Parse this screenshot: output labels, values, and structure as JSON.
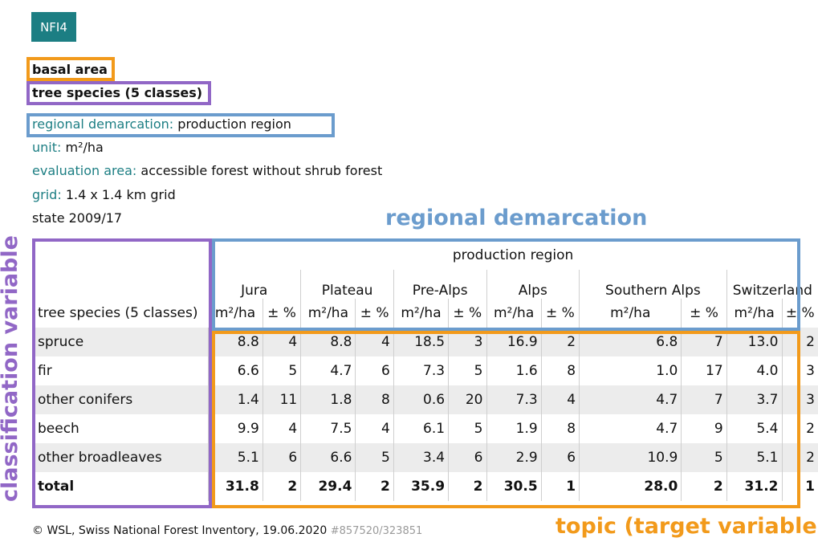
{
  "badge": "NFI4",
  "topic": "basal area",
  "classification": "tree species (5 classes)",
  "regional_label": "regional demarcation:",
  "regional_value": "production region",
  "unit_label": "unit:",
  "unit_value": "m²/ha",
  "eval_label": "evaluation area:",
  "eval_value": "accessible forest without shrub forest",
  "grid_label": "grid:",
  "grid_value": "1.4 x 1.4 km grid",
  "state": "state 2009/17",
  "annotations": {
    "regional": "regional demarcation",
    "classification": "classification variable",
    "topic": "topic (target variable)"
  },
  "table": {
    "group_header": "production region",
    "row_header": "tree species (5 classes)",
    "unit_col": "m²/ha",
    "err_col": "± %",
    "regions": [
      "Jura",
      "Plateau",
      "Pre-Alps",
      "Alps",
      "Southern Alps",
      "Switzerland"
    ],
    "rows": [
      {
        "label": "spruce",
        "cells": [
          "8.8",
          "4",
          "8.8",
          "4",
          "18.5",
          "3",
          "16.9",
          "2",
          "6.8",
          "7",
          "13.0",
          "2"
        ]
      },
      {
        "label": "fir",
        "cells": [
          "6.6",
          "5",
          "4.7",
          "6",
          "7.3",
          "5",
          "1.6",
          "8",
          "1.0",
          "17",
          "4.0",
          "3"
        ]
      },
      {
        "label": "other conifers",
        "cells": [
          "1.4",
          "11",
          "1.8",
          "8",
          "0.6",
          "20",
          "7.3",
          "4",
          "4.7",
          "7",
          "3.7",
          "3"
        ]
      },
      {
        "label": "beech",
        "cells": [
          "9.9",
          "4",
          "7.5",
          "4",
          "6.1",
          "5",
          "1.9",
          "8",
          "4.7",
          "9",
          "5.4",
          "2"
        ]
      },
      {
        "label": "other broadleaves",
        "cells": [
          "5.1",
          "6",
          "6.6",
          "5",
          "3.4",
          "6",
          "2.9",
          "6",
          "10.9",
          "5",
          "5.1",
          "2"
        ]
      },
      {
        "label": "total",
        "cells": [
          "31.8",
          "2",
          "29.4",
          "2",
          "35.9",
          "2",
          "30.5",
          "1",
          "28.0",
          "2",
          "31.2",
          "1"
        ]
      }
    ]
  },
  "footer": {
    "text": "© WSL, Swiss National Forest Inventory, 19.06.2020",
    "id": "#857520/323851"
  },
  "colors": {
    "teal": "#1c7e83",
    "orange": "#f29a1b",
    "purple": "#9167c6",
    "blue": "#6b9ccd"
  }
}
